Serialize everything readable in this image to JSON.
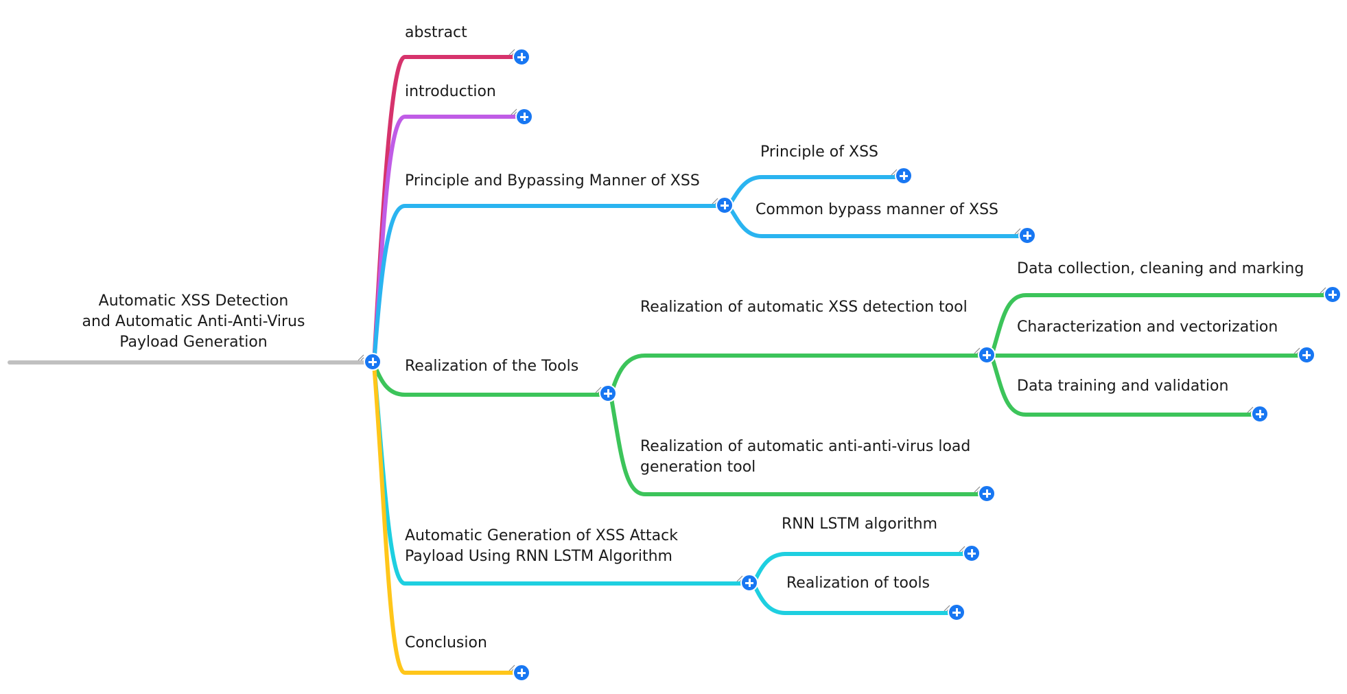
{
  "root": {
    "line1": "Automatic XSS Detection",
    "line2": "and Automatic Anti-Anti-Virus",
    "line3": "Payload Generation"
  },
  "colors": {
    "root_line": "#c0c0c0",
    "abstract": "#d6336c",
    "introduction": "#c05ce6",
    "principle": "#2ab4f0",
    "tools": "#3cc45a",
    "generation": "#1ecfe0",
    "conclusion": "#ffc61a",
    "expand_button": "#1877f2"
  },
  "branches": {
    "abstract": {
      "label": "abstract"
    },
    "introduction": {
      "label": "introduction"
    },
    "principle": {
      "label": "Principle and Bypassing Manner of XSS",
      "children": [
        {
          "label": "Principle of XSS"
        },
        {
          "label": "Common bypass manner of XSS"
        }
      ]
    },
    "tools": {
      "label": "Realization of the Tools",
      "detection": {
        "label": "Realization of automatic XSS detection tool",
        "children": [
          {
            "label": "Data collection, cleaning and marking"
          },
          {
            "label": "Characterization and vectorization"
          },
          {
            "label": "Data training and validation"
          }
        ]
      },
      "antivirus": {
        "line1": "Realization of automatic anti-anti-virus load",
        "line2": "generation tool"
      }
    },
    "generation": {
      "line1": "Automatic Generation of XSS Attack",
      "line2": "Payload Using RNN LSTM Algorithm",
      "children": [
        {
          "label": "RNN LSTM algorithm"
        },
        {
          "label": "Realization of tools"
        }
      ]
    },
    "conclusion": {
      "label": "Conclusion"
    }
  },
  "icons": {
    "expand": "plus-circle-icon",
    "resize": "resize-grip-icon"
  }
}
